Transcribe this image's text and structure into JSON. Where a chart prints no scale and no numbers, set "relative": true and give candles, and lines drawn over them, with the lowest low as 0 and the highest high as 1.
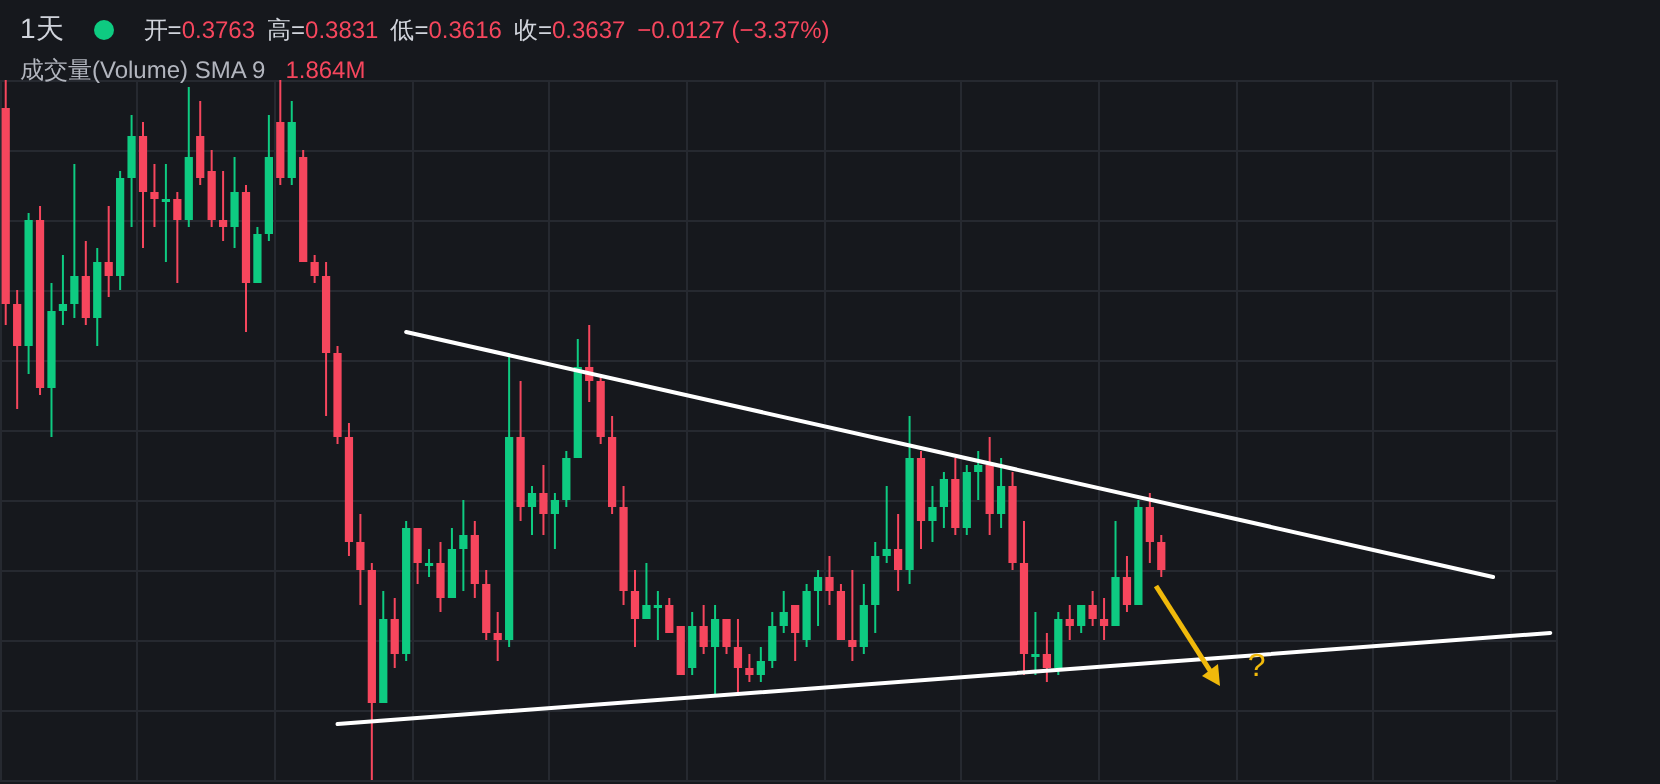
{
  "chart_data": {
    "type": "candlestick",
    "title": "1天",
    "relative": true,
    "grid": true,
    "annotations": [
      "成交量(Volume) SMA 9",
      "1.864M",
      "开=0.3763",
      "高=0.3831",
      "低=0.3616",
      "收=0.3637",
      "−0.0127 (−3.37%)",
      "?"
    ],
    "categories": [
      null,
      null,
      null,
      null,
      null,
      null,
      null,
      null,
      null,
      null,
      null,
      null,
      null,
      null,
      null,
      null,
      null,
      null,
      null,
      null,
      null,
      null,
      null,
      null,
      null,
      null,
      null,
      null,
      null,
      null,
      null,
      null,
      null,
      null,
      null,
      null,
      null,
      null,
      null,
      null,
      null,
      null,
      null,
      null,
      null,
      null,
      null,
      null,
      null,
      null,
      null,
      null,
      null,
      null,
      null,
      null,
      null,
      null,
      null,
      null,
      null,
      null,
      null,
      null,
      null,
      null,
      null,
      null,
      null,
      null,
      null,
      null,
      null,
      null,
      null,
      null,
      null,
      null,
      null,
      null,
      null,
      null,
      null,
      null,
      null,
      null,
      null,
      null,
      null,
      null,
      null,
      null,
      null,
      null,
      null,
      null,
      null,
      null,
      null,
      null,
      null,
      null,
      null,
      null,
      null,
      null,
      null,
      null,
      null,
      null,
      null,
      null,
      null,
      null,
      null,
      null,
      null,
      null,
      null,
      null,
      null,
      null,
      null,
      null,
      null,
      null,
      null,
      null,
      null,
      null,
      null,
      null,
      null,
      null,
      null,
      null
    ],
    "ohlc": [
      [
        0.96,
        1,
        0.65,
        0.68
      ],
      [
        0.68,
        0.7,
        0.53,
        0.62
      ],
      [
        0.62,
        0.81,
        0.58,
        0.8
      ],
      [
        0.8,
        0.82,
        0.55,
        0.56
      ],
      [
        0.56,
        0.71,
        0.49,
        0.67
      ],
      [
        0.67,
        0.75,
        0.65,
        0.68
      ],
      [
        0.68,
        0.88,
        0.66,
        0.72
      ],
      [
        0.72,
        0.77,
        0.65,
        0.66
      ],
      [
        0.66,
        0.76,
        0.62,
        0.74
      ],
      [
        0.74,
        0.82,
        0.69,
        0.72
      ],
      [
        0.72,
        0.87,
        0.7,
        0.86
      ],
      [
        0.86,
        0.95,
        0.79,
        0.92
      ],
      [
        0.92,
        0.94,
        0.76,
        0.84
      ],
      [
        0.84,
        0.88,
        0.79,
        0.83
      ],
      [
        0.83,
        0.88,
        0.74,
        0.83
      ],
      [
        0.83,
        0.84,
        0.71,
        0.8
      ],
      [
        0.8,
        0.99,
        0.79,
        0.89
      ],
      [
        0.92,
        0.97,
        0.85,
        0.86
      ],
      [
        0.87,
        0.9,
        0.79,
        0.8
      ],
      [
        0.8,
        0.87,
        0.77,
        0.79
      ],
      [
        0.79,
        0.89,
        0.76,
        0.84
      ],
      [
        0.84,
        0.85,
        0.64,
        0.71
      ],
      [
        0.71,
        0.79,
        0.71,
        0.78
      ],
      [
        0.78,
        0.95,
        0.77,
        0.89
      ],
      [
        0.94,
        1,
        0.85,
        0.86
      ],
      [
        0.86,
        0.97,
        0.85,
        0.94
      ],
      [
        0.89,
        0.9,
        0.74,
        0.74
      ],
      [
        0.74,
        0.75,
        0.71,
        0.72
      ],
      [
        0.72,
        0.74,
        0.52,
        0.61
      ],
      [
        0.61,
        0.62,
        0.48,
        0.49
      ],
      [
        0.49,
        0.51,
        0.32,
        0.34
      ],
      [
        0.34,
        0.38,
        0.25,
        0.3
      ],
      [
        0.3,
        0.31,
        0,
        0.11
      ],
      [
        0.11,
        0.27,
        0.11,
        0.23
      ],
      [
        0.23,
        0.26,
        0.16,
        0.18
      ],
      [
        0.18,
        0.37,
        0.17,
        0.36
      ],
      [
        0.36,
        0.36,
        0.28,
        0.31
      ],
      [
        0.31,
        0.33,
        0.29,
        0.31
      ],
      [
        0.31,
        0.34,
        0.24,
        0.26
      ],
      [
        0.26,
        0.36,
        0.26,
        0.33
      ],
      [
        0.33,
        0.4,
        0.27,
        0.35
      ],
      [
        0.35,
        0.37,
        0.26,
        0.28
      ],
      [
        0.28,
        0.3,
        0.2,
        0.21
      ],
      [
        0.21,
        0.24,
        0.17,
        0.2
      ],
      [
        0.2,
        0.61,
        0.19,
        0.49
      ],
      [
        0.49,
        0.57,
        0.37,
        0.39
      ],
      [
        0.39,
        0.42,
        0.35,
        0.41
      ],
      [
        0.41,
        0.45,
        0.35,
        0.38
      ],
      [
        0.38,
        0.41,
        0.33,
        0.4
      ],
      [
        0.4,
        0.47,
        0.39,
        0.46
      ],
      [
        0.46,
        0.63,
        0.46,
        0.59
      ],
      [
        0.59,
        0.65,
        0.54,
        0.57
      ],
      [
        0.57,
        0.58,
        0.48,
        0.49
      ],
      [
        0.49,
        0.52,
        0.38,
        0.39
      ],
      [
        0.39,
        0.42,
        0.25,
        0.27
      ],
      [
        0.27,
        0.3,
        0.19,
        0.23
      ],
      [
        0.23,
        0.31,
        0.23,
        0.25
      ],
      [
        0.25,
        0.27,
        0.2,
        0.25
      ],
      [
        0.25,
        0.26,
        0.21,
        0.21
      ],
      [
        0.22,
        0.22,
        0.15,
        0.15
      ],
      [
        0.16,
        0.24,
        0.15,
        0.22
      ],
      [
        0.22,
        0.25,
        0.18,
        0.19
      ],
      [
        0.19,
        0.25,
        0.12,
        0.23
      ],
      [
        0.23,
        0.23,
        0.18,
        0.19
      ],
      [
        0.19,
        0.23,
        0.12,
        0.16
      ],
      [
        0.16,
        0.18,
        0.14,
        0.15
      ],
      [
        0.15,
        0.19,
        0.14,
        0.17
      ],
      [
        0.17,
        0.24,
        0.16,
        0.22
      ],
      [
        0.22,
        0.27,
        0.21,
        0.24
      ],
      [
        0.25,
        0.25,
        0.17,
        0.21
      ],
      [
        0.2,
        0.28,
        0.19,
        0.27
      ],
      [
        0.27,
        0.3,
        0.22,
        0.29
      ],
      [
        0.29,
        0.32,
        0.25,
        0.27
      ],
      [
        0.27,
        0.28,
        0.2,
        0.2
      ],
      [
        0.2,
        0.3,
        0.17,
        0.19
      ],
      [
        0.19,
        0.28,
        0.18,
        0.25
      ],
      [
        0.25,
        0.34,
        0.21,
        0.32
      ],
      [
        0.32,
        0.42,
        0.31,
        0.33
      ],
      [
        0.33,
        0.38,
        0.27,
        0.3
      ],
      [
        0.3,
        0.52,
        0.28,
        0.46
      ],
      [
        0.46,
        0.47,
        0.33,
        0.37
      ],
      [
        0.37,
        0.42,
        0.34,
        0.39
      ],
      [
        0.39,
        0.44,
        0.36,
        0.43
      ],
      [
        0.43,
        0.46,
        0.35,
        0.36
      ],
      [
        0.36,
        0.45,
        0.35,
        0.44
      ],
      [
        0.44,
        0.47,
        0.4,
        0.45
      ],
      [
        0.45,
        0.49,
        0.35,
        0.38
      ],
      [
        0.38,
        0.46,
        0.36,
        0.42
      ],
      [
        0.42,
        0.44,
        0.3,
        0.31
      ],
      [
        0.31,
        0.37,
        0.15,
        0.18
      ],
      [
        0.18,
        0.24,
        0.15,
        0.18
      ],
      [
        0.18,
        0.21,
        0.14,
        0.16
      ],
      [
        0.16,
        0.24,
        0.15,
        0.23
      ],
      [
        0.23,
        0.25,
        0.2,
        0.22
      ],
      [
        0.22,
        0.25,
        0.21,
        0.25
      ],
      [
        0.25,
        0.27,
        0.22,
        0.23
      ],
      [
        0.23,
        0.26,
        0.2,
        0.22
      ],
      [
        0.22,
        0.37,
        0.22,
        0.29
      ],
      [
        0.29,
        0.32,
        0.24,
        0.25
      ],
      [
        0.25,
        0.4,
        0.25,
        0.39
      ],
      [
        0.39,
        0.41,
        0.31,
        0.34
      ],
      [
        0.34,
        0.35,
        0.29,
        0.3
      ],
      null,
      null,
      null,
      null,
      null,
      null,
      null,
      null,
      null,
      null,
      null,
      null,
      null,
      null,
      null,
      null,
      null,
      null,
      null,
      null,
      null,
      null,
      null,
      null,
      null,
      null,
      null,
      null,
      null,
      null,
      null,
      null,
      null,
      null
    ],
    "series": [
      {
        "type": "line",
        "color": "#ffffff",
        "values": [
          null,
          null,
          null,
          null,
          null,
          null,
          null,
          null,
          null,
          null,
          null,
          null,
          null,
          null,
          null,
          null,
          null,
          null,
          null,
          null,
          null,
          null,
          null,
          null,
          null,
          null,
          null,
          null,
          null,
          null,
          null,
          null,
          null,
          null,
          null,
          0.64,
          null,
          null,
          null,
          null,
          null,
          null,
          null,
          null,
          null,
          null,
          null,
          null,
          null,
          null,
          null,
          null,
          null,
          null,
          null,
          null,
          null,
          null,
          null,
          null,
          null,
          null,
          null,
          null,
          null,
          null,
          null,
          null,
          null,
          null,
          null,
          null,
          null,
          null,
          null,
          null,
          null,
          null,
          null,
          null,
          null,
          null,
          null,
          null,
          null,
          null,
          null,
          null,
          null,
          null,
          null,
          null,
          null,
          null,
          null,
          null,
          null,
          null,
          null,
          null,
          null,
          null,
          null,
          null,
          null,
          null,
          null,
          null,
          null,
          null,
          null,
          null,
          null,
          null,
          null,
          null,
          null,
          null,
          null,
          null,
          null,
          null,
          null,
          null,
          null,
          null,
          null,
          null,
          null,
          null,
          0.29,
          null,
          null,
          null,
          null,
          null
        ]
      },
      {
        "type": "line",
        "color": "#ffffff",
        "values": [
          null,
          null,
          null,
          null,
          null,
          null,
          null,
          null,
          null,
          null,
          null,
          null,
          null,
          null,
          null,
          null,
          null,
          null,
          null,
          null,
          null,
          null,
          null,
          null,
          null,
          null,
          null,
          null,
          null,
          0.08,
          null,
          null,
          null,
          null,
          null,
          null,
          null,
          null,
          null,
          null,
          null,
          null,
          null,
          null,
          null,
          null,
          null,
          null,
          null,
          null,
          null,
          null,
          null,
          null,
          null,
          null,
          null,
          null,
          null,
          null,
          null,
          null,
          null,
          null,
          null,
          null,
          null,
          null,
          null,
          null,
          null,
          null,
          null,
          null,
          null,
          null,
          null,
          null,
          null,
          null,
          null,
          null,
          null,
          null,
          null,
          null,
          null,
          null,
          null,
          null,
          null,
          null,
          null,
          null,
          null,
          null,
          null,
          null,
          null,
          null,
          null,
          null,
          null,
          null,
          null,
          null,
          null,
          null,
          null,
          null,
          null,
          null,
          null,
          null,
          null,
          null,
          null,
          null,
          null,
          null,
          null,
          null,
          null,
          null,
          null,
          null,
          null,
          null,
          null,
          null,
          null,
          null,
          null,
          null,
          null,
          0.21
        ]
      }
    ]
  }
}
